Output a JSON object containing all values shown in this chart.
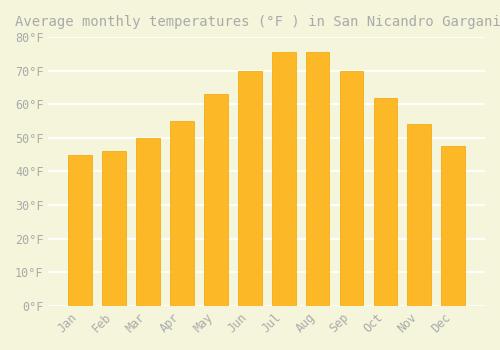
{
  "title": "Average monthly temperatures (°F ) in San Nicandro Garganico",
  "months": [
    "Jan",
    "Feb",
    "Mar",
    "Apr",
    "May",
    "Jun",
    "Jul",
    "Aug",
    "Sep",
    "Oct",
    "Nov",
    "Dec"
  ],
  "values": [
    45,
    46,
    50,
    55,
    63,
    70,
    75.5,
    75.5,
    70,
    62,
    54,
    47.5
  ],
  "bar_color_main": "#FDB827",
  "bar_color_edge": "#F0A500",
  "background_color": "#F5F5DC",
  "grid_color": "#FFFFFF",
  "text_color": "#AAAAAA",
  "ylim": [
    0,
    80
  ],
  "yticks": [
    0,
    10,
    20,
    30,
    40,
    50,
    60,
    70,
    80
  ],
  "ytick_labels": [
    "0°F",
    "10°F",
    "20°F",
    "30°F",
    "40°F",
    "50°F",
    "60°F",
    "70°F",
    "80°F"
  ],
  "title_fontsize": 10,
  "tick_fontsize": 8.5,
  "title_font_family": "monospace"
}
